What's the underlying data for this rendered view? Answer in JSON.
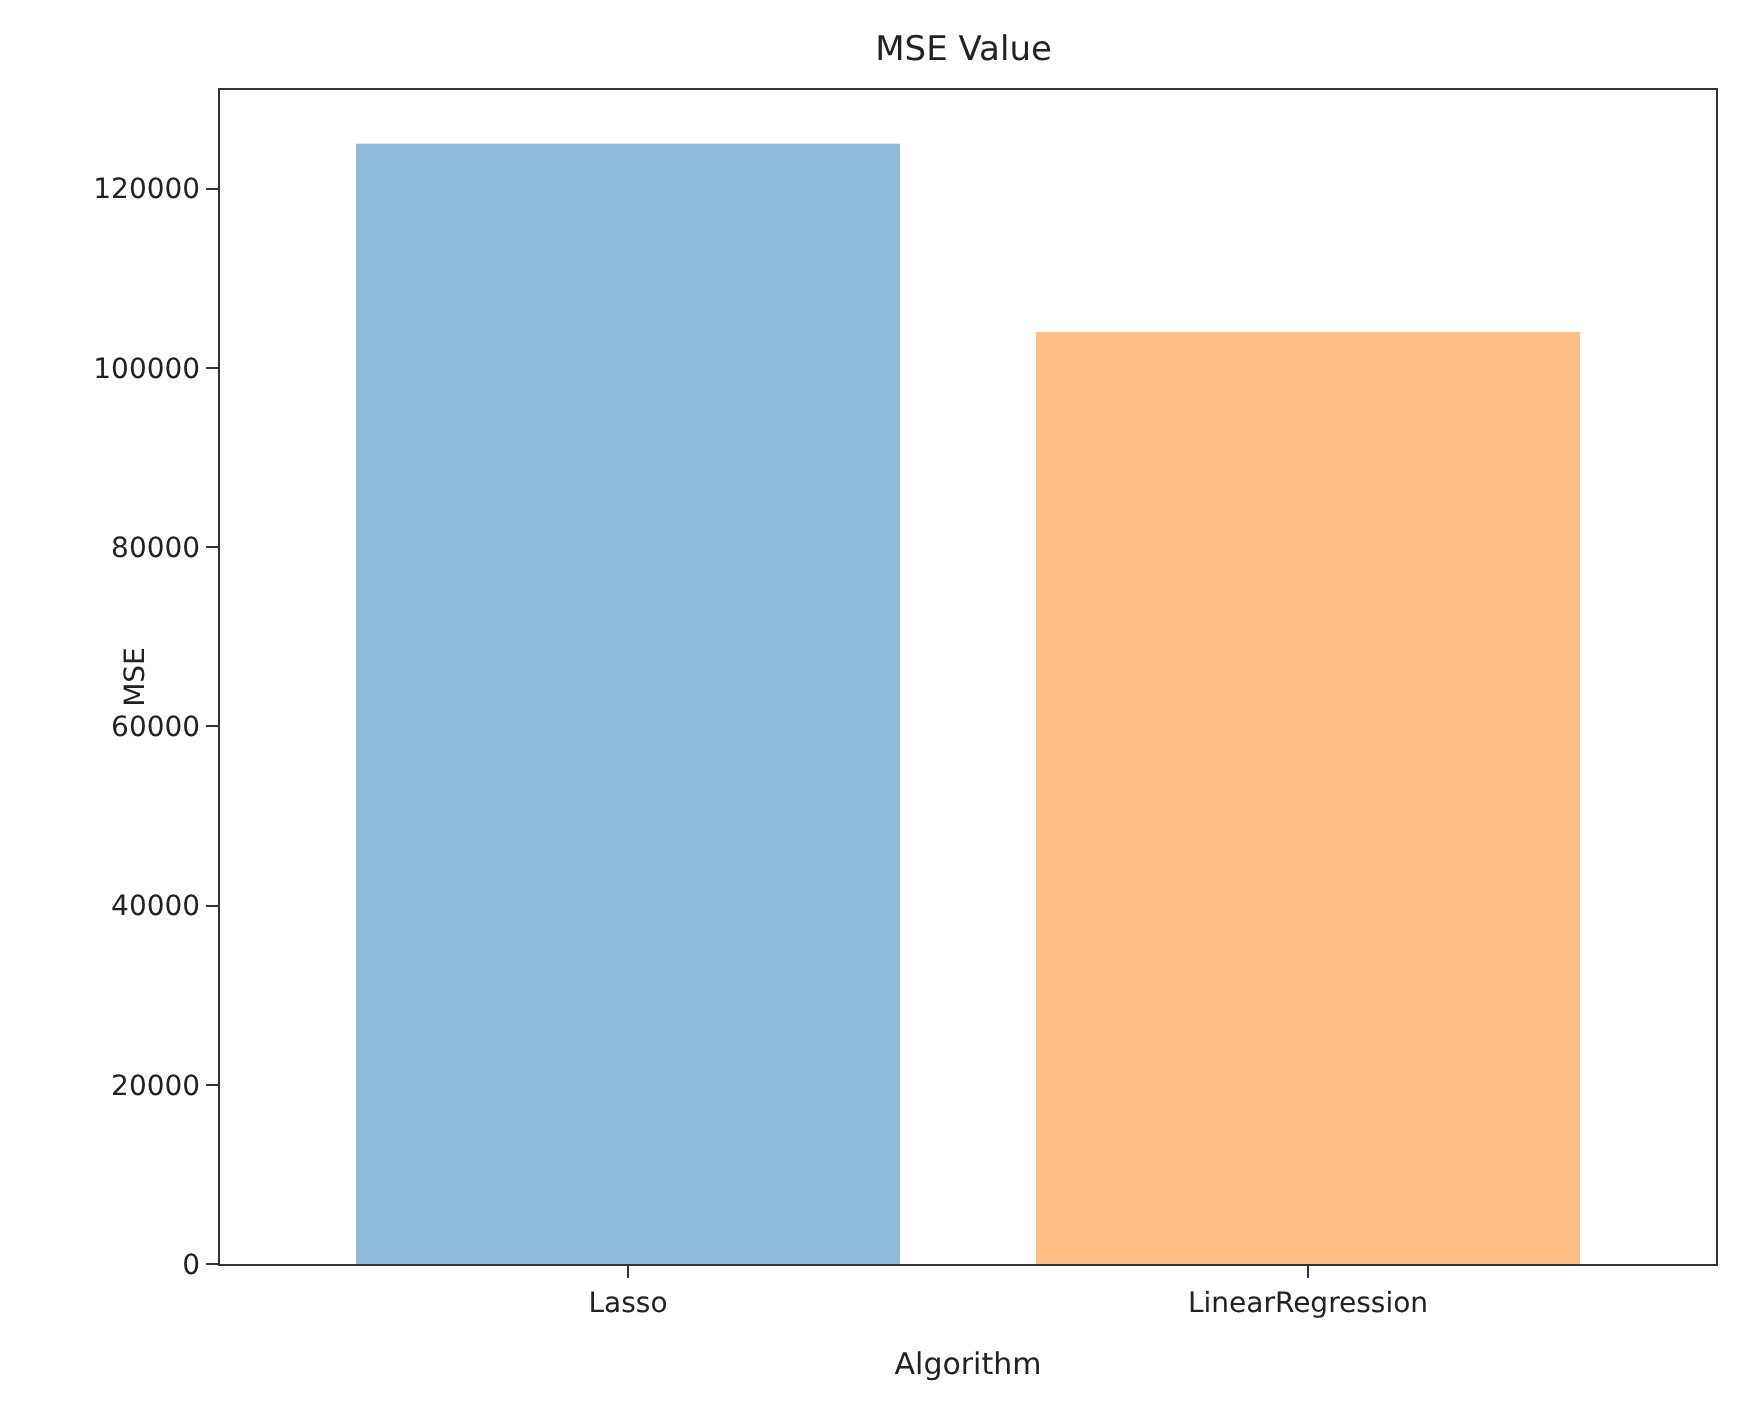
{
  "chart_data": {
    "type": "bar",
    "title": "MSE Value",
    "xlabel": "Algorithm",
    "ylabel": "MSE",
    "categories": [
      "Lasso",
      "LinearRegression"
    ],
    "values": [
      125000,
      104000
    ],
    "colors": [
      "#8fbbd9",
      "#ffbf86"
    ],
    "ylim": [
      0,
      131000
    ],
    "yticks": [
      0,
      20000,
      40000,
      60000,
      80000,
      100000,
      120000
    ],
    "grid": false
  }
}
